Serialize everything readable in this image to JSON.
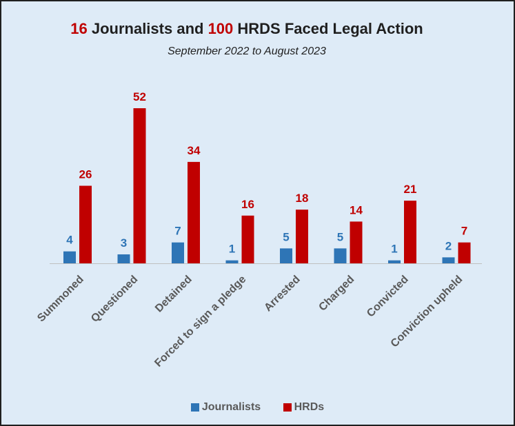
{
  "title": {
    "num_journalists": "16",
    "part1": " Journalists and ",
    "num_hrds": "100",
    "part2": " HRDS Faced Legal Action"
  },
  "subtitle": "September 2022 to August 2023",
  "colors": {
    "journalists": "#2e75b6",
    "hrds": "#c00000",
    "axis_label": "#595959",
    "background": "#deebf7"
  },
  "chart_data": {
    "type": "bar",
    "title": "16 Journalists and 100 HRDS Faced Legal Action",
    "subtitle": "September 2022 to August 2023",
    "categories": [
      "Summoned",
      "Questioned",
      "Detained",
      "Forced to sign a pledge",
      "Arrested",
      "Charged",
      "Convicted",
      "Conviction upheld"
    ],
    "series": [
      {
        "name": "Journalists",
        "values": [
          4,
          3,
          7,
          1,
          5,
          5,
          1,
          2
        ]
      },
      {
        "name": "HRDs",
        "values": [
          26,
          52,
          34,
          16,
          18,
          14,
          21,
          7
        ]
      }
    ],
    "ylim": [
      0,
      52
    ],
    "grid": false,
    "data_labels": true,
    "legend": "bottom"
  }
}
